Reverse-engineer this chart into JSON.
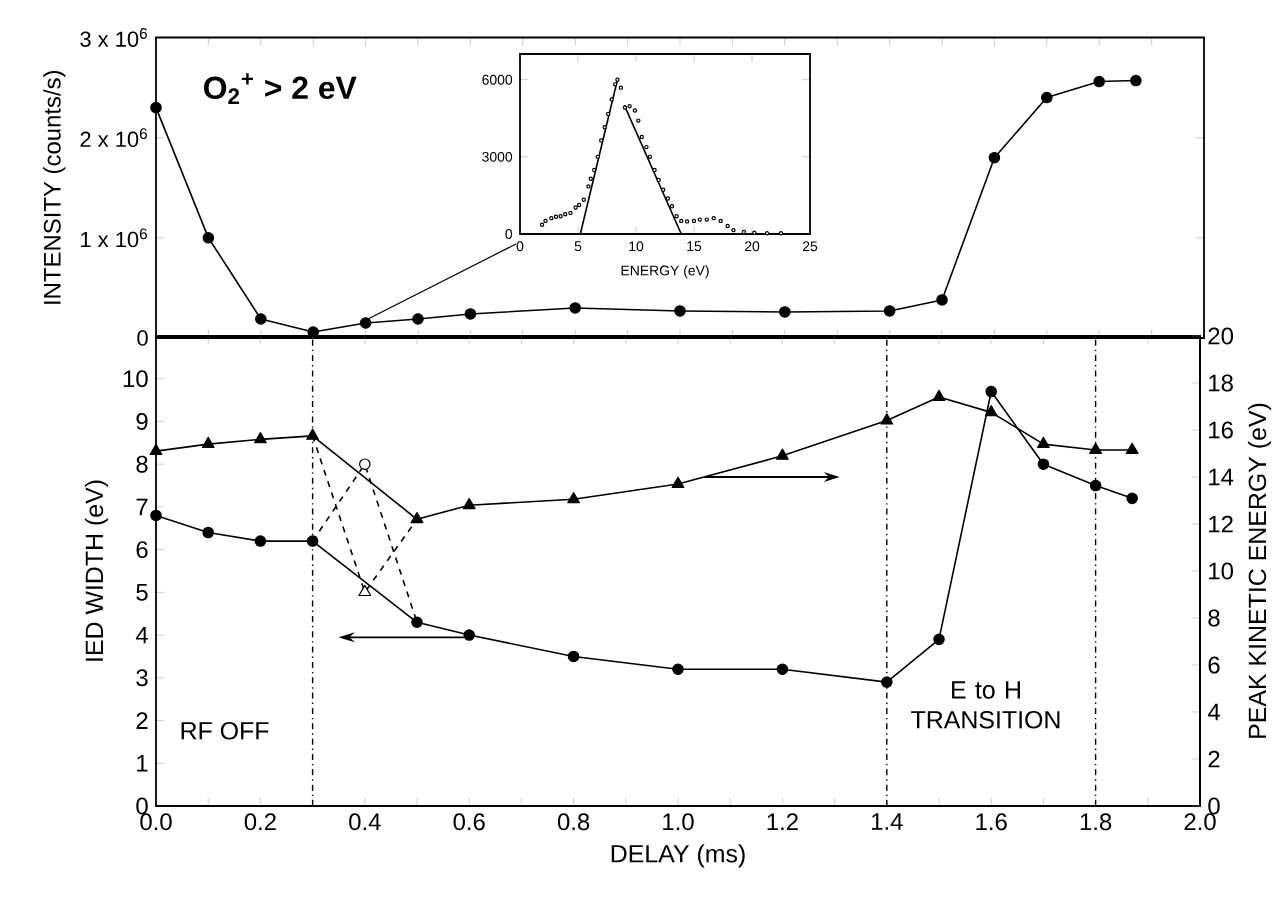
{
  "chart_data": [
    {
      "type": "line",
      "ylabel": "INTENSITY (counts/s)",
      "annotations": [
        "O$_{2}$$^{+}$ > 2 eV"
      ],
      "color": "#000000",
      "marker": "circle",
      "tick_labels": "y",
      "x": [
        0,
        0.1,
        0.2,
        0.3,
        0.4,
        0.5,
        0.6,
        0.8,
        1.0,
        1.2,
        1.4,
        1.5,
        1.6,
        1.7,
        1.8,
        1.87
      ],
      "values": [
        2300000,
        1000000,
        190000,
        60000,
        150000,
        190000,
        240000,
        300000,
        270000,
        260000,
        270000,
        380000,
        1800000,
        2400000,
        2560000,
        2570000
      ],
      "xlim": [
        0,
        2
      ],
      "ylim": [
        0,
        3000000
      ],
      "xticks": [
        {
          "value": 0,
          "label": null
        },
        {
          "value": 0.1,
          "label": null
        },
        {
          "value": 0.2,
          "label": null
        },
        {
          "value": 0.3,
          "label": null
        },
        {
          "value": 0.4,
          "label": null
        },
        {
          "value": 0.5,
          "label": null
        },
        {
          "value": 0.6,
          "label": null
        },
        {
          "value": 0.7,
          "label": null
        },
        {
          "value": 0.8,
          "label": null
        },
        {
          "value": 0.9,
          "label": null
        },
        {
          "value": 1.0,
          "label": null
        },
        {
          "value": 1.1,
          "label": null
        },
        {
          "value": 1.2,
          "label": null
        },
        {
          "value": 1.3,
          "label": null
        },
        {
          "value": 1.4,
          "label": null
        },
        {
          "value": 1.5,
          "label": null
        },
        {
          "value": 1.6,
          "label": null
        },
        {
          "value": 1.7,
          "label": null
        },
        {
          "value": 1.8,
          "label": null
        },
        {
          "value": 1.9,
          "label": null
        },
        {
          "value": 2.0,
          "label": null
        }
      ],
      "yticks": [
        0,
        {
          "value": 1000000,
          "label": "1 x 10$^{6}$"
        },
        {
          "value": 2000000,
          "label": "2 x 10$^{6}$"
        },
        {
          "value": 3000000,
          "label": "3 x 10$^{6}$"
        }
      ]
    },
    {
      "type": "scatter",
      "xlabel": "ENERGY (eV)",
      "xlim": [
        0,
        25
      ],
      "ylim": [
        0,
        7000
      ],
      "xticks": [
        0,
        5,
        10,
        15,
        20,
        25
      ],
      "yticks": [
        0,
        3000,
        6000
      ],
      "series": [
        {
          "type": "scatter",
          "color": "#000000",
          "marker": "circle",
          "x": [
            1.9,
            2.2,
            2.7,
            3.1,
            3.5,
            3.9,
            4.35,
            4.8,
            5.1,
            5.5,
            5.9,
            6.1,
            6.4,
            6.7,
            7.0,
            7.3,
            7.6,
            7.9,
            8.2,
            8.4,
            8.7,
            9.05,
            9.45,
            9.9,
            10.2,
            10.5,
            10.9,
            11.2,
            11.6,
            11.95,
            12.35,
            12.75,
            13.1,
            13.5,
            13.9,
            14.4,
            15.0,
            15.5,
            16.1,
            16.7,
            17.3,
            17.9,
            18.4,
            19.3,
            20.2,
            21.3,
            22.5
          ],
          "values": [
            360,
            510,
            615,
            670,
            690,
            770,
            820,
            1030,
            1130,
            1330,
            1850,
            2150,
            2490,
            3000,
            3640,
            4150,
            4670,
            5230,
            5820,
            6000,
            5690,
            4920,
            4970,
            4800,
            4410,
            3770,
            3380,
            3000,
            2490,
            2100,
            1720,
            1380,
            1080,
            690,
            510,
            490,
            510,
            560,
            560,
            615,
            510,
            310,
            150,
            80,
            50,
            30,
            30
          ]
        },
        {
          "type": "line",
          "color": "#000000",
          "marker": "none",
          "x": [
            5.2,
            8.4
          ],
          "values": [
            0,
            6000
          ]
        },
        {
          "type": "line",
          "color": "#000000",
          "marker": "none",
          "x": [
            9.0,
            13.9
          ],
          "values": [
            5000,
            0
          ]
        }
      ]
    },
    {
      "type": "line",
      "xlabel": "DELAY (ms)",
      "ylabel": "IED WIDTH (eV)",
      "y2label": "PEAK KINETIC ENERGY (eV)",
      "annotations": [
        "RF OFF",
        "E to H TRANSITION"
      ],
      "xlim": [
        0,
        2
      ],
      "ylim": [
        0,
        11
      ],
      "y2lim": [
        0,
        20
      ],
      "xticks": [
        {
          "value": 0,
          "label": "0.0"
        },
        {
          "value": 0.1,
          "label": null
        },
        {
          "value": 0.2,
          "label": "0.2"
        },
        {
          "value": 0.3,
          "label": null
        },
        {
          "value": 0.4,
          "label": "0.4"
        },
        {
          "value": 0.5,
          "label": null
        },
        {
          "value": 0.6,
          "label": "0.6"
        },
        {
          "value": 0.7,
          "label": null
        },
        {
          "value": 0.8,
          "label": "0.8"
        },
        {
          "value": 0.9,
          "label": null
        },
        {
          "value": 1.0,
          "label": "1.0"
        },
        {
          "value": 1.1,
          "label": null
        },
        {
          "value": 1.2,
          "label": "1.2"
        },
        {
          "value": 1.3,
          "label": null
        },
        {
          "value": 1.4,
          "label": "1.4"
        },
        {
          "value": 1.5,
          "label": null
        },
        {
          "value": 1.6,
          "label": "1.6"
        },
        {
          "value": 1.7,
          "label": null
        },
        {
          "value": 1.8,
          "label": "1.8"
        },
        {
          "value": 1.9,
          "label": null
        },
        {
          "value": 2.0,
          "label": "2.0"
        }
      ],
      "yticks": [
        0,
        1,
        2,
        3,
        4,
        5,
        6,
        7,
        8,
        9,
        10
      ],
      "y2ticks": [
        0,
        2,
        4,
        6,
        8,
        10,
        12,
        14,
        16,
        18,
        20
      ],
      "ref_lines": [
        {
          "axis": "x",
          "value": 0.3,
          "line_style": "dashdot",
          "color": "#000000"
        },
        {
          "axis": "x",
          "value": 1.4,
          "line_style": "dashdot",
          "color": "#000000"
        },
        {
          "axis": "x",
          "value": 1.8,
          "line_style": "dashdot",
          "color": "#000000"
        }
      ],
      "series": [
        {
          "type": "line",
          "color": "#000000",
          "marker": "circle",
          "line_style": "solid",
          "x": [
            0,
            0.1,
            0.2,
            0.3,
            0.5,
            0.6,
            0.8,
            1.0,
            1.2,
            1.4,
            1.5,
            1.6,
            1.7,
            1.8,
            1.87
          ],
          "values": [
            6.8,
            6.4,
            6.2,
            6.2,
            4.3,
            4.0,
            3.5,
            3.2,
            3.2,
            2.9,
            3.9,
            9.7,
            8.0,
            7.5,
            7.2
          ]
        },
        {
          "type": "line",
          "color": "#000000",
          "marker": "none",
          "line_style": "dashed",
          "x": [
            0.3,
            0.4,
            0.5
          ],
          "values": [
            6.2,
            8.0,
            4.3
          ]
        },
        {
          "type": "scatter",
          "color": "#000000",
          "marker": "circle",
          "x": [
            0.4
          ],
          "values": [
            8.0
          ]
        },
        {
          "type": "line",
          "axis": "y2",
          "color": "#000000",
          "marker": "triangle",
          "line_style": "solid",
          "x": [
            0,
            0.1,
            0.2,
            0.3,
            0.5,
            0.6,
            0.8,
            1.0,
            1.2,
            1.4,
            1.5,
            1.6,
            1.7,
            1.8,
            1.87
          ],
          "values": [
            15.1,
            15.4,
            15.6,
            15.75,
            12.2,
            12.8,
            13.05,
            13.7,
            14.9,
            16.4,
            17.4,
            16.75,
            15.4,
            15.15,
            15.15
          ]
        },
        {
          "type": "line",
          "axis": "y2",
          "color": "#000000",
          "marker": "none",
          "line_style": "dashed",
          "x": [
            0.3,
            0.4,
            0.5
          ],
          "values": [
            15.75,
            9.1,
            12.2
          ]
        },
        {
          "type": "scatter",
          "axis": "y2",
          "color": "#000000",
          "marker": "triangle",
          "x": [
            0.4
          ],
          "values": [
            9.1
          ]
        }
      ]
    }
  ]
}
